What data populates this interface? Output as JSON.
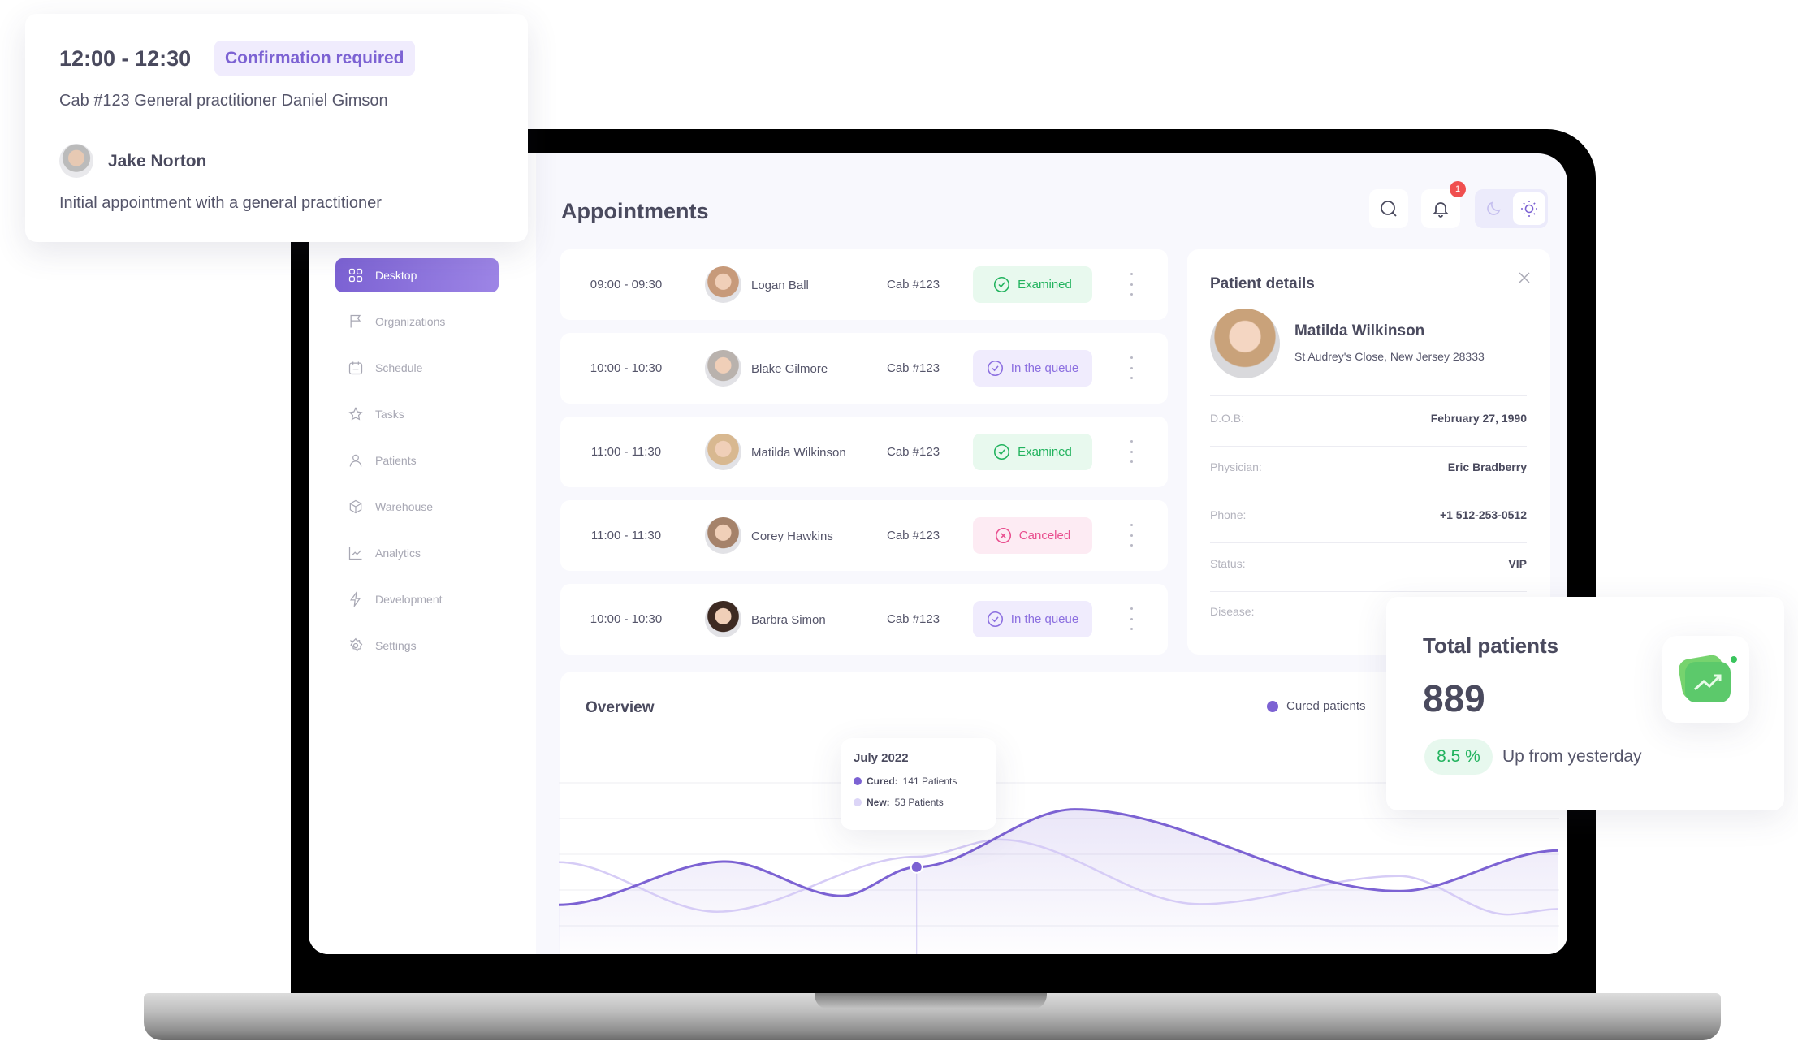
{
  "notification": {
    "time": "12:00 - 12:30",
    "status": "Confirmation required",
    "location": "Cab #123  General practitioner Daniel Gimson",
    "patient": "Jake Norton",
    "description": "Initial appointment with a general practitioner"
  },
  "sidebar": {
    "items": [
      {
        "label": "Desktop",
        "icon": "grid-icon",
        "active": true
      },
      {
        "label": "Organizations",
        "icon": "flag-icon"
      },
      {
        "label": "Schedule",
        "icon": "calendar-icon"
      },
      {
        "label": "Tasks",
        "icon": "star-icon"
      },
      {
        "label": "Patients",
        "icon": "user-icon"
      },
      {
        "label": "Warehouse",
        "icon": "box-icon"
      },
      {
        "label": "Analytics",
        "icon": "chart-icon"
      },
      {
        "label": "Development",
        "icon": "bolt-icon"
      },
      {
        "label": "Settings",
        "icon": "gear-icon"
      }
    ]
  },
  "header": {
    "title": "Appointments",
    "notification_count": "1",
    "theme": "light"
  },
  "appointments": [
    {
      "time": "09:00 - 09:30",
      "name": "Logan Ball",
      "cab": "Cab #123",
      "status": "Examined",
      "kind": "examined"
    },
    {
      "time": "10:00 - 10:30",
      "name": "Blake Gilmore",
      "cab": "Cab #123",
      "status": "In the queue",
      "kind": "queue"
    },
    {
      "time": "11:00 - 11:30",
      "name": "Matilda Wilkinson",
      "cab": "Cab #123",
      "status": "Examined",
      "kind": "examined"
    },
    {
      "time": "11:00 - 11:30",
      "name": "Corey Hawkins",
      "cab": "Cab #123",
      "status": "Canceled",
      "kind": "canceled"
    },
    {
      "time": "10:00 - 10:30",
      "name": "Barbra Simon",
      "cab": "Cab #123",
      "status": "In the queue",
      "kind": "queue"
    }
  ],
  "patient_details": {
    "title": "Patient details",
    "name": "Matilda Wilkinson",
    "address": "St Audrey's Close, New Jersey 28333",
    "fields": [
      {
        "label": "D.O.B:",
        "value": "February 27, 1990"
      },
      {
        "label": "Physician:",
        "value": "Eric Bradberry"
      },
      {
        "label": "Phone:",
        "value": "+1 512-253-0512"
      },
      {
        "label": "Status:",
        "value": "VIP"
      },
      {
        "label": "Disease:",
        "value": ""
      }
    ]
  },
  "total": {
    "title": "Total patients",
    "value": "889",
    "change": "8.5 %",
    "change_label": "Up from yesterday"
  },
  "colors": {
    "accent": "#7c62d3",
    "examined": "#22b35e",
    "queue": "#8c6fe0",
    "canceled": "#e94f8f"
  },
  "chart_data": {
    "type": "area",
    "title": "Overview",
    "ylim": [
      0,
      300
    ],
    "grid": true,
    "legend": "top-right",
    "legend_label": "Cured patients",
    "series": [
      {
        "name": "Cured patients",
        "x": [
          0,
          2.0,
          3.4,
          4.3,
          6.2,
          10.1,
          12
        ],
        "values": [
          86,
          149,
          99,
          141,
          225,
          106,
          165
        ]
      },
      {
        "x": [
          0,
          1.9,
          4.3,
          5.3,
          7.7,
          10.1,
          11.4,
          12
        ],
        "values": [
          148,
          76,
          156,
          181,
          87,
          128,
          72,
          80
        ]
      }
    ],
    "tooltip": {
      "title": "July 2022",
      "cured_label": "Cured:",
      "cured_value": "141 Patients",
      "new_label": "New:",
      "new_value": "53 Patients"
    }
  }
}
